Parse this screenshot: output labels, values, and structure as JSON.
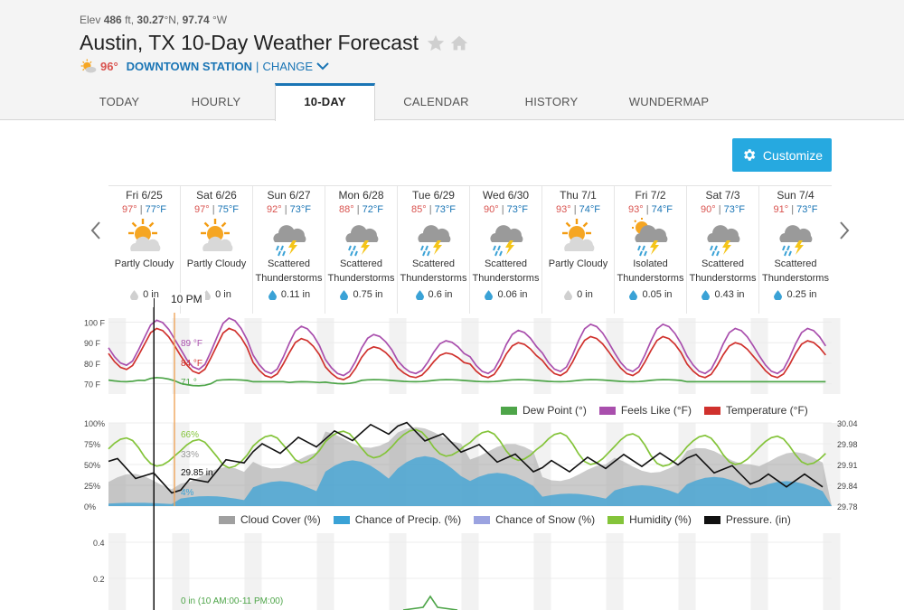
{
  "header": {
    "elev_prefix": "Elev",
    "elev_value": "486",
    "elev_unit": "ft,",
    "lat": "30.27",
    "lat_dir": "°N,",
    "lon": "97.74",
    "lon_dir": "°W",
    "title": "Austin, TX 10-Day Weather Forecast",
    "current_temp": "96°",
    "station": "DOWNTOWN STATION",
    "separator": "|",
    "change_label": "CHANGE"
  },
  "tabs": [
    {
      "label": "TODAY",
      "active": false
    },
    {
      "label": "HOURLY",
      "active": false
    },
    {
      "label": "10-DAY",
      "active": true
    },
    {
      "label": "CALENDAR",
      "active": false
    },
    {
      "label": "HISTORY",
      "active": false
    },
    {
      "label": "WUNDERMAP",
      "active": false
    }
  ],
  "customize_label": "Customize",
  "days": [
    {
      "label": "Fri 6/25",
      "hi": "97°",
      "lo": "77°F",
      "icon": "partly-cloudy-icon",
      "cond1": "Partly Cloudy",
      "cond2": "",
      "precip": "0 in"
    },
    {
      "label": "Sat 6/26",
      "hi": "97°",
      "lo": "75°F",
      "icon": "partly-cloudy-icon",
      "cond1": "Partly Cloudy",
      "cond2": "",
      "precip": "0 in"
    },
    {
      "label": "Sun 6/27",
      "hi": "92°",
      "lo": "73°F",
      "icon": "thunderstorm-icon",
      "cond1": "Scattered",
      "cond2": "Thunderstorms",
      "precip": "0.11 in"
    },
    {
      "label": "Mon 6/28",
      "hi": "88°",
      "lo": "72°F",
      "icon": "thunderstorm-icon",
      "cond1": "Scattered",
      "cond2": "Thunderstorms",
      "precip": "0.75 in"
    },
    {
      "label": "Tue 6/29",
      "hi": "85°",
      "lo": "73°F",
      "icon": "thunderstorm-icon",
      "cond1": "Scattered",
      "cond2": "Thunderstorms",
      "precip": "0.6 in"
    },
    {
      "label": "Wed 6/30",
      "hi": "90°",
      "lo": "73°F",
      "icon": "thunderstorm-icon",
      "cond1": "Scattered",
      "cond2": "Thunderstorms",
      "precip": "0.06 in"
    },
    {
      "label": "Thu 7/1",
      "hi": "93°",
      "lo": "74°F",
      "icon": "partly-cloudy-icon",
      "cond1": "Partly Cloudy",
      "cond2": "",
      "precip": "0 in"
    },
    {
      "label": "Fri 7/2",
      "hi": "93°",
      "lo": "74°F",
      "icon": "isolated-thunderstorm-icon",
      "cond1": "Isolated",
      "cond2": "Thunderstorms",
      "precip": "0.05 in"
    },
    {
      "label": "Sat 7/3",
      "hi": "90°",
      "lo": "73°F",
      "icon": "thunderstorm-icon",
      "cond1": "Scattered",
      "cond2": "Thunderstorms",
      "precip": "0.43 in"
    },
    {
      "label": "Sun 7/4",
      "hi": "91°",
      "lo": "73°F",
      "icon": "thunderstorm-icon",
      "cond1": "Scattered",
      "cond2": "Thunderstorms",
      "precip": "0.25 in"
    }
  ],
  "colors": {
    "accent": "#1a75b5",
    "customize_bg": "#26a9e0",
    "temperature": "#d0312d",
    "feels_like": "#a94fad",
    "dew_point": "#4ea549",
    "cloud_cover": "#a0a0a0",
    "precip_chance": "#3aa2d6",
    "snow_chance": "#9ba3e0",
    "humidity": "#84c43a",
    "pressure": "#111111",
    "cursor": "#f0a55a"
  },
  "chart_data": [
    {
      "type": "line",
      "title": "",
      "yticks": [
        "100 F",
        "90 F",
        "80 F",
        "70 F"
      ],
      "ylim": [
        65,
        102
      ],
      "x_unit": "hours",
      "cursor_label": "10 PM",
      "cursor_readouts": {
        "feels_like": "89 °F",
        "temperature": "84 °F",
        "dew_point": "71 °"
      },
      "series": [
        {
          "name": "Temperature (°F)",
          "key": "temperature",
          "daily_hi": [
            97,
            97,
            92,
            88,
            85,
            90,
            93,
            93,
            90,
            91
          ],
          "daily_lo": [
            77,
            75,
            73,
            72,
            73,
            73,
            74,
            74,
            73,
            73
          ]
        },
        {
          "name": "Feels Like (°F)",
          "key": "feels_like",
          "daily_hi": [
            101,
            102,
            98,
            94,
            91,
            96,
            99,
            99,
            97,
            97
          ],
          "daily_lo": [
            79,
            77,
            75,
            74,
            75,
            75,
            76,
            76,
            75,
            75
          ]
        },
        {
          "name": "Dew Point (°)",
          "key": "dew_point",
          "daily_hi": [
            73,
            72,
            71,
            72,
            72,
            72,
            72,
            72,
            71,
            71
          ],
          "daily_lo": [
            71,
            69,
            71,
            70,
            71,
            71,
            71,
            71,
            71,
            71
          ]
        }
      ],
      "legend": [
        "Dew Point (°)",
        "Feels Like (°F)",
        "Temperature (°F)"
      ]
    },
    {
      "type": "area",
      "title": "",
      "yticks_left": [
        "100%",
        "75%",
        "50%",
        "25%",
        "0%"
      ],
      "yticks_right": [
        "30.04",
        "29.98",
        "29.91",
        "29.84",
        "29.78"
      ],
      "ylim_left": [
        0,
        100
      ],
      "ylim_right": [
        29.78,
        30.04
      ],
      "cursor_readouts": {
        "humidity": "66%",
        "cloud_cover": "33%",
        "pressure": "29.85 in",
        "precip": "4%"
      },
      "series": [
        {
          "name": "Cloud Cover (%)",
          "key": "cloud_cover"
        },
        {
          "name": "Chance of Precip. (%)",
          "key": "precip_chance",
          "daily_max": [
            4,
            12,
            30,
            55,
            60,
            40,
            15,
            25,
            35,
            30
          ]
        },
        {
          "name": "Chance of Snow (%)",
          "key": "snow_chance",
          "daily_max": [
            0,
            0,
            0,
            0,
            0,
            0,
            0,
            0,
            0,
            0
          ]
        },
        {
          "name": "Humidity (%)",
          "key": "humidity",
          "daily_hi": [
            82,
            80,
            85,
            90,
            92,
            90,
            88,
            87,
            85,
            84
          ],
          "daily_lo": [
            48,
            46,
            52,
            58,
            60,
            55,
            50,
            48,
            50,
            50
          ]
        },
        {
          "name": "Pressure. (in)",
          "key": "pressure",
          "values_by_day": [
            29.92,
            29.83,
            29.95,
            29.99,
            30.03,
            29.96,
            29.9,
            29.92,
            29.93,
            29.86
          ]
        }
      ],
      "legend": [
        "Cloud Cover (%)",
        "Chance of Precip. (%)",
        "Chance of Snow (%)",
        "Humidity (%)",
        "Pressure. (in)"
      ]
    },
    {
      "type": "line",
      "title": "",
      "yticks": [
        "0.4",
        "0.2"
      ],
      "ylim": [
        0,
        0.45
      ],
      "annotation": "0 in (10 AM:00-11 PM:00)",
      "series": [
        {
          "name": "Precip Accum",
          "key": "dew_point",
          "peak_day_index": 4,
          "peak_value": 0.1
        }
      ]
    }
  ]
}
